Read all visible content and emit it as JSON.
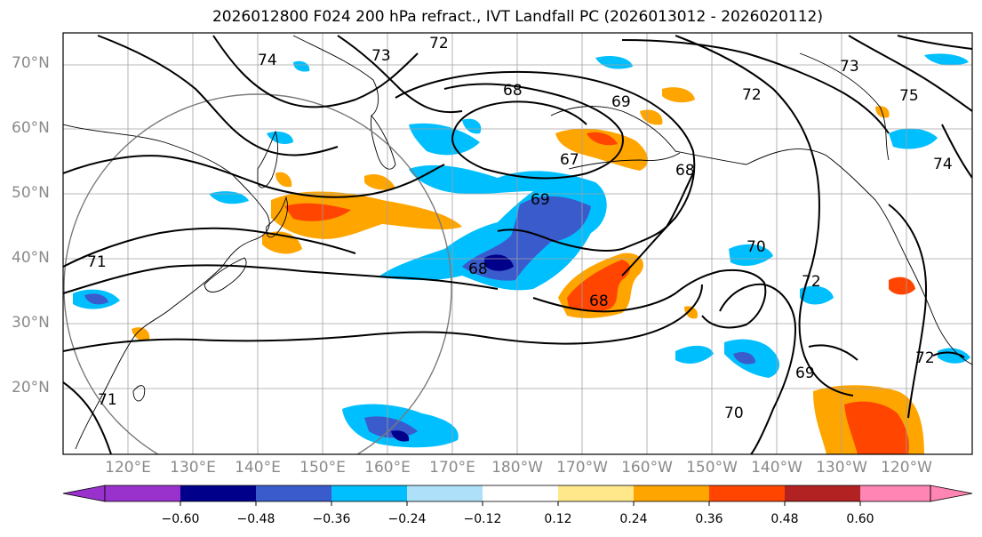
{
  "title": "2026012800 F024 200 hPa refract., IVT Landfall PC (2026013012 - 2026020112)",
  "map": {
    "lat_labels": [
      "70°N",
      "60°N",
      "50°N",
      "40°N",
      "30°N",
      "20°N"
    ],
    "lon_labels": [
      "120°E",
      "130°E",
      "140°E",
      "150°E",
      "160°E",
      "170°E",
      "180°W",
      "170°W",
      "160°W",
      "150°W",
      "140°W",
      "130°W",
      "120°W"
    ],
    "contour_labels": [
      "71",
      "72",
      "73",
      "74",
      "68",
      "69",
      "67",
      "68",
      "69",
      "68",
      "70",
      "72",
      "72",
      "73",
      "75",
      "70",
      "69",
      "72",
      "71",
      "74",
      "68"
    ]
  },
  "colorbar": {
    "colors": [
      "#9932cc",
      "#00008b",
      "#3a5bcc",
      "#00bfff",
      "#aee0fa",
      "#ffffff",
      "#ffe88a",
      "#ffa500",
      "#ff4500",
      "#b22222",
      "#ff85b4"
    ],
    "ticks": [
      "−0.60",
      "−0.48",
      "−0.36",
      "−0.24",
      "−0.12",
      "0.12",
      "0.24",
      "0.36",
      "0.48",
      "0.60"
    ]
  }
}
